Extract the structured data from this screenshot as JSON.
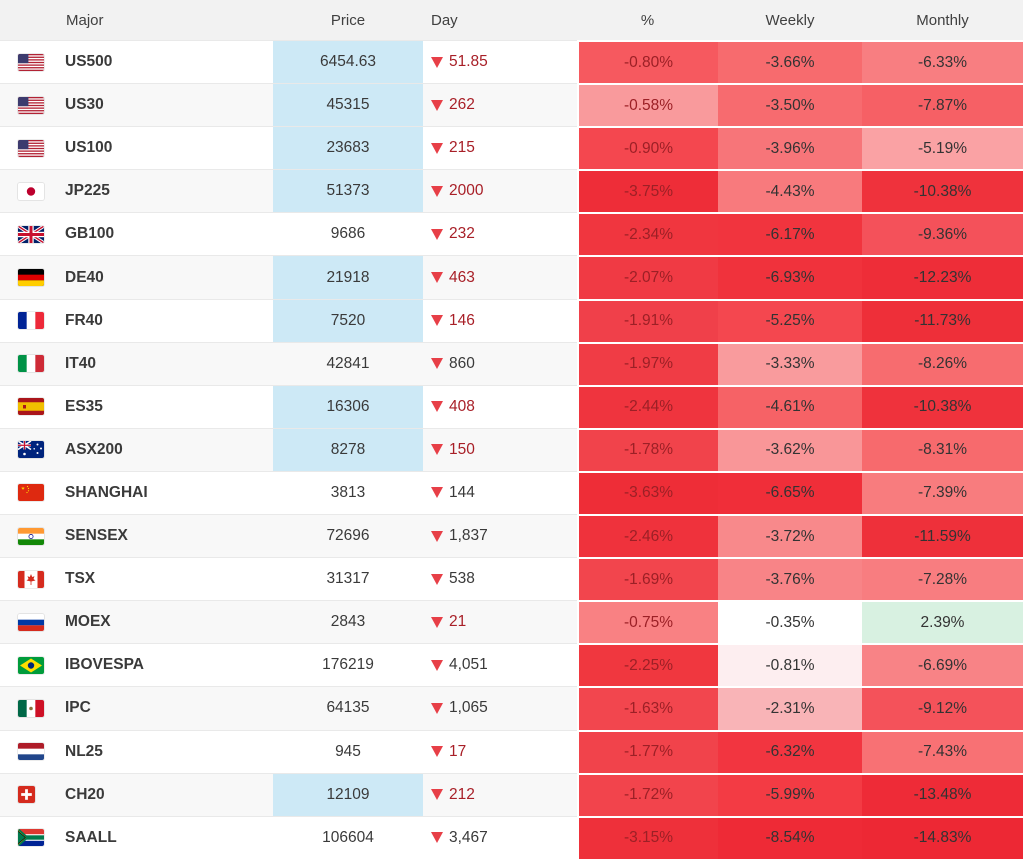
{
  "header": {
    "columns": [
      "Major",
      "Price",
      "Day",
      "%",
      "Weekly",
      "Monthly"
    ]
  },
  "colors": {
    "price_highlight": "#cde9f6",
    "positive_monthly": "#d8f1e1",
    "triangle_red": "#e73f47",
    "day_red_text": "#a81f27",
    "day_dark_text": "#3a3a3a",
    "pct_text": "#9c2026",
    "heat_text": "#333333",
    "header_bg": "#f2f2f2",
    "row_alt_bg": "#f8f8f8"
  },
  "rows": [
    {
      "name": "US500",
      "flag": "us",
      "flag_name": "united-states",
      "price": "6454.63",
      "price_highlight": true,
      "day": "51.85",
      "day_style": "red",
      "pct": "-0.80%",
      "pct_bg": "#f6595f",
      "weekly": "-3.66%",
      "weekly_bg": "#f76b6e",
      "monthly": "-6.33%",
      "monthly_bg": "#f87e81"
    },
    {
      "name": "US30",
      "flag": "us",
      "flag_name": "united-states",
      "price": "45315",
      "price_highlight": true,
      "day": "262",
      "day_style": "red",
      "pct": "-0.58%",
      "pct_bg": "#f99a9c",
      "weekly": "-3.50%",
      "weekly_bg": "#f76b6f",
      "monthly": "-7.87%",
      "monthly_bg": "#f66065"
    },
    {
      "name": "US100",
      "flag": "us",
      "flag_name": "united-states",
      "price": "23683",
      "price_highlight": true,
      "day": "215",
      "day_style": "red",
      "pct": "-0.90%",
      "pct_bg": "#f4474f",
      "weekly": "-3.96%",
      "weekly_bg": "#f77579",
      "monthly": "-5.19%",
      "monthly_bg": "#faa2a4"
    },
    {
      "name": "JP225",
      "flag": "jp",
      "flag_name": "japan",
      "price": "51373",
      "price_highlight": true,
      "day": "2000",
      "day_style": "red",
      "pct": "-3.75%",
      "pct_bg": "#ee2d38",
      "weekly": "-4.43%",
      "weekly_bg": "#f87a7d",
      "monthly": "-10.38%",
      "monthly_bg": "#ef323c"
    },
    {
      "name": "GB100",
      "flag": "gb",
      "flag_name": "united-kingdom",
      "price": "9686",
      "price_highlight": false,
      "day": "232",
      "day_style": "red",
      "pct": "-2.34%",
      "pct_bg": "#f0363f",
      "weekly": "-6.17%",
      "weekly_bg": "#f1343e",
      "monthly": "-9.36%",
      "monthly_bg": "#f4515a"
    },
    {
      "name": "DE40",
      "flag": "de",
      "flag_name": "germany",
      "price": "21918",
      "price_highlight": true,
      "day": "463",
      "day_style": "red",
      "pct": "-2.07%",
      "pct_bg": "#f03a44",
      "weekly": "-6.93%",
      "weekly_bg": "#f0323c",
      "monthly": "-12.23%",
      "monthly_bg": "#ee2d38"
    },
    {
      "name": "FR40",
      "flag": "fr",
      "flag_name": "france",
      "price": "7520",
      "price_highlight": true,
      "day": "146",
      "day_style": "red",
      "pct": "-1.91%",
      "pct_bg": "#f0404a",
      "weekly": "-5.25%",
      "weekly_bg": "#f4474f",
      "monthly": "-11.73%",
      "monthly_bg": "#ee2f39"
    },
    {
      "name": "IT40",
      "flag": "it",
      "flag_name": "italy",
      "price": "42841",
      "price_highlight": false,
      "day": "860",
      "day_style": "dark",
      "pct": "-1.97%",
      "pct_bg": "#f03c45",
      "weekly": "-3.33%",
      "weekly_bg": "#f99b9d",
      "monthly": "-8.26%",
      "monthly_bg": "#f76c6f"
    },
    {
      "name": "ES35",
      "flag": "es",
      "flag_name": "spain",
      "price": "16306",
      "price_highlight": true,
      "day": "408",
      "day_style": "red",
      "pct": "-2.44%",
      "pct_bg": "#ef343e",
      "weekly": "-4.61%",
      "weekly_bg": "#f66266",
      "monthly": "-10.38%",
      "monthly_bg": "#ef323c"
    },
    {
      "name": "ASX200",
      "flag": "au",
      "flag_name": "australia",
      "price": "8278",
      "price_highlight": true,
      "day": "150",
      "day_style": "red",
      "pct": "-1.78%",
      "pct_bg": "#f1434b",
      "weekly": "-3.62%",
      "weekly_bg": "#f99698",
      "monthly": "-8.31%",
      "monthly_bg": "#f76a6d"
    },
    {
      "name": "SHANGHAI",
      "flag": "cn",
      "flag_name": "china",
      "price": "3813",
      "price_highlight": false,
      "day": "144",
      "day_style": "dark",
      "pct": "-3.63%",
      "pct_bg": "#ee2d37",
      "weekly": "-6.65%",
      "weekly_bg": "#f02e39",
      "monthly": "-7.39%",
      "monthly_bg": "#f87c7e"
    },
    {
      "name": "SENSEX",
      "flag": "in",
      "flag_name": "india",
      "price": "72696",
      "price_highlight": false,
      "day": "1,837",
      "day_style": "dark",
      "pct": "-2.46%",
      "pct_bg": "#ef323c",
      "weekly": "-3.72%",
      "weekly_bg": "#f8898b",
      "monthly": "-11.59%",
      "monthly_bg": "#ee303a"
    },
    {
      "name": "TSX",
      "flag": "ca",
      "flag_name": "canada",
      "price": "31317",
      "price_highlight": false,
      "day": "538",
      "day_style": "dark",
      "pct": "-1.69%",
      "pct_bg": "#f2454d",
      "weekly": "-3.76%",
      "weekly_bg": "#f88487",
      "monthly": "-7.28%",
      "monthly_bg": "#f87d80"
    },
    {
      "name": "MOEX",
      "flag": "ru",
      "flag_name": "russia",
      "price": "2843",
      "price_highlight": false,
      "day": "21",
      "day_style": "red",
      "pct": "-0.75%",
      "pct_bg": "#f98183",
      "weekly": "-0.35%",
      "weekly_bg": "#ffffff",
      "monthly": "2.39%",
      "monthly_bg": "#d8f1e1"
    },
    {
      "name": "IBOVESPA",
      "flag": "br",
      "flag_name": "brazil",
      "price": "176219",
      "price_highlight": false,
      "day": "4,051",
      "day_style": "dark",
      "pct": "-2.25%",
      "pct_bg": "#f0373f",
      "weekly": "-0.81%",
      "weekly_bg": "#fdeef0",
      "monthly": "-6.69%",
      "monthly_bg": "#f88386"
    },
    {
      "name": "IPC",
      "flag": "mx",
      "flag_name": "mexico",
      "price": "64135",
      "price_highlight": false,
      "day": "1,065",
      "day_style": "dark",
      "pct": "-1.63%",
      "pct_bg": "#f2464e",
      "weekly": "-2.31%",
      "weekly_bg": "#f9b4b7",
      "monthly": "-9.12%",
      "monthly_bg": "#f4525a"
    },
    {
      "name": "NL25",
      "flag": "nl",
      "flag_name": "netherlands",
      "price": "945",
      "price_highlight": false,
      "day": "17",
      "day_style": "red",
      "pct": "-1.77%",
      "pct_bg": "#f1434b",
      "weekly": "-6.32%",
      "weekly_bg": "#f23540",
      "monthly": "-7.43%",
      "monthly_bg": "#f87174"
    },
    {
      "name": "CH20",
      "flag": "ch",
      "flag_name": "switzerland",
      "price": "12109",
      "price_highlight": true,
      "day": "212",
      "day_style": "red",
      "pct": "-1.72%",
      "pct_bg": "#f2444c",
      "weekly": "-5.99%",
      "weekly_bg": "#f33b44",
      "monthly": "-13.48%",
      "monthly_bg": "#ee2b37"
    },
    {
      "name": "SAALL",
      "flag": "za",
      "flag_name": "south-africa",
      "price": "106604",
      "price_highlight": false,
      "day": "3,467",
      "day_style": "dark",
      "pct": "-3.15%",
      "pct_bg": "#ee303a",
      "weekly": "-8.54%",
      "weekly_bg": "#ee2a36",
      "monthly": "-14.83%",
      "monthly_bg": "#ed2834"
    }
  ]
}
